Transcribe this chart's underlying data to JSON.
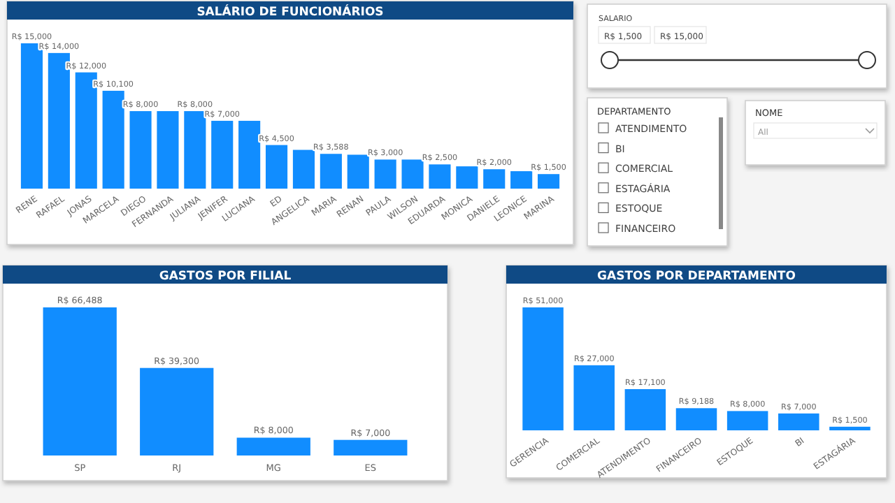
{
  "chart_data": [
    {
      "type": "bar",
      "title": "SALÁRIO DE FUNCIONÁRIOS",
      "categories": [
        "RENE",
        "RAFAEL",
        "JONAS",
        "MARCELA",
        "DIEGO",
        "FERNANDA",
        "JULIANA",
        "JENIFER",
        "LUCIANA",
        "ED",
        "ANGELICA",
        "MARIA",
        "RENAN",
        "PAULA",
        "WILSON",
        "EDUARDA",
        "MONICA",
        "DANIELE",
        "LEONICE",
        "MARINA"
      ],
      "values": [
        15000,
        14000,
        12000,
        10100,
        8000,
        8000,
        8000,
        7000,
        7000,
        4500,
        4000,
        3588,
        3500,
        3000,
        3000,
        2500,
        2300,
        2000,
        1800,
        1500
      ],
      "color": "#118dff",
      "value_labels": [
        "R$ 15,000",
        "R$ 14,000",
        "R$ 12,000",
        "R$ 10,100",
        "R$ 8,000",
        null,
        "R$ 8,000",
        "R$ 7,000",
        null,
        "R$ 4,500",
        null,
        "R$ 3,588",
        null,
        "R$ 3,000",
        null,
        "R$ 2,500",
        null,
        "R$ 2,000",
        null,
        "R$ 1,500"
      ]
    },
    {
      "type": "other",
      "title": "SALARIO",
      "annotations": [
        "R$ 1,500",
        "R$ 15,000"
      ]
    },
    {
      "type": "other",
      "title": "DEPARTAMENTO",
      "annotations": [
        "ATENDIMENTO",
        "BI",
        "COMERCIAL",
        "ESTAGÁRIA",
        "ESTOQUE",
        "FINANCEIRO"
      ]
    },
    {
      "type": "other",
      "title": "NOME",
      "annotations": [
        "All"
      ]
    },
    {
      "type": "bar",
      "title": "GASTOS POR FILIAL",
      "categories": [
        "SP",
        "RJ",
        "MG",
        "ES"
      ],
      "values": [
        66488,
        39300,
        8000,
        7000
      ],
      "color": "#118dff",
      "value_labels": [
        "R$ 66,488",
        "R$ 39,300",
        "R$ 8,000",
        "R$ 7,000"
      ]
    },
    {
      "type": "bar",
      "title": "GASTOS POR DEPARTAMENTO",
      "categories": [
        "GERENCIA",
        "COMERCIAL",
        "ATENDIMENTO",
        "FINANCEIRO",
        "ESTOQUE",
        "BI",
        "ESTAGÁRIA"
      ],
      "values": [
        51000,
        27000,
        17100,
        9188,
        8000,
        7000,
        1500
      ],
      "color": "#118dff",
      "value_labels": [
        "R$ 51,000",
        "R$ 27,000",
        "R$ 17,100",
        "R$ 9,188",
        "R$ 8,000",
        "R$ 7,000",
        "R$ 1,500"
      ]
    }
  ]
}
